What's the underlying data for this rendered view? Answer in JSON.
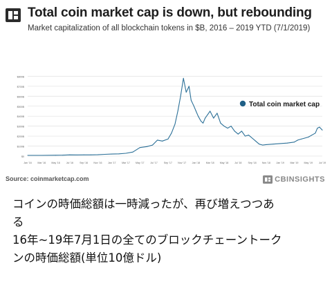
{
  "header": {
    "title": "Total coin market cap is down, but rebounding",
    "subtitle": "Market capitalization of all blockchain tokens in $B, 2016 – 2019 YTD (7/1/2019)"
  },
  "footer": {
    "source": "Source: coinmarketcap.com",
    "brand": "CBINSIGHTS"
  },
  "caption": {
    "line1": "コインの時価総額は一時減ったが、再び増えつつあ",
    "line2": "る",
    "line3": "16年~19年7月1日の全てのブロックチェーントーク",
    "line4": "ンの時価総額(単位10億ドル)"
  },
  "colors": {
    "line": "#2a6f97",
    "legend_dot": "#1f5f86",
    "grid": "#e4e4e4",
    "logo": "#2b2b2b",
    "caption_text": "#111111"
  },
  "chart_data": {
    "type": "line",
    "title": "Total coin market cap is down, but rebounding",
    "xlabel": "",
    "ylabel": "",
    "grid": true,
    "legend_position": "top-right",
    "ylim": [
      0,
      900
    ],
    "y_ticks": [
      0,
      100,
      200,
      300,
      400,
      500,
      600,
      700,
      800
    ],
    "y_tick_labels": [
      "$0",
      "$100B",
      "$200B",
      "$300B",
      "$400B",
      "$500B",
      "$600B",
      "$700B",
      "$800B"
    ],
    "x_tick_labels": [
      "Jan '16",
      "Mar '16",
      "May '16",
      "Jul '16",
      "Sep '16",
      "Nov '16",
      "Jan '17",
      "Mar '17",
      "May '17",
      "Jul '17",
      "Sep '17",
      "Nov '17",
      "Jan '18",
      "Mar '18",
      "May '18",
      "Jul '18",
      "Sep '18",
      "Nov '18",
      "Jan '19",
      "Mar '19",
      "May '19",
      "Jul '19"
    ],
    "x_range": [
      0,
      42
    ],
    "series": [
      {
        "name": "Total coin market cap",
        "x": [
          0,
          2,
          4,
          5,
          6,
          7,
          8,
          9,
          10,
          11,
          12,
          13,
          14,
          15,
          16,
          17,
          17.8,
          18.5,
          19.2,
          20,
          20.5,
          21,
          21.4,
          21.8,
          22.2,
          22.6,
          23,
          23.3,
          23.7,
          24,
          24.3,
          24.7,
          25,
          25.3,
          25.7,
          26,
          26.5,
          27,
          27.5,
          28,
          28.5,
          29,
          29.5,
          30,
          30.5,
          31,
          31.5,
          32,
          32.5,
          33,
          33.5,
          34,
          35,
          36,
          37,
          38,
          38.5,
          39,
          39.5,
          40,
          40.5,
          41,
          41.3,
          41.6,
          42
        ],
        "y": [
          7,
          7,
          8,
          9,
          12,
          11,
          12,
          12,
          13,
          17,
          20,
          22,
          28,
          40,
          85,
          95,
          110,
          160,
          150,
          170,
          230,
          320,
          450,
          600,
          780,
          640,
          700,
          560,
          500,
          450,
          400,
          350,
          330,
          380,
          420,
          450,
          380,
          430,
          330,
          300,
          280,
          300,
          250,
          220,
          250,
          200,
          210,
          180,
          150,
          120,
          110,
          115,
          120,
          125,
          130,
          140,
          160,
          170,
          180,
          190,
          210,
          230,
          280,
          290,
          260
        ]
      }
    ]
  }
}
